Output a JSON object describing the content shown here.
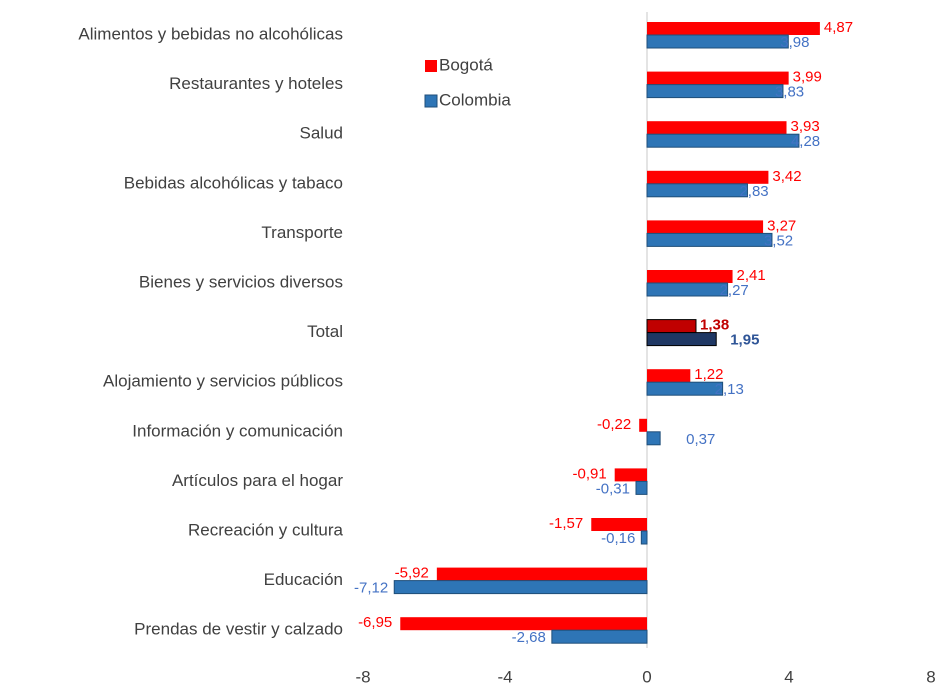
{
  "chart_data": {
    "type": "hbar-grouped",
    "categories": [
      "Alimentos y bebidas no alcohólicas",
      "Restaurantes y hoteles",
      "Salud",
      "Bebidas alcohólicas y tabaco",
      "Transporte",
      "Bienes y servicios diversos",
      "Total",
      "Alojamiento y servicios públicos",
      "Información y comunicación",
      "Artículos para el hogar ",
      "Recreación y cultura",
      "Educación",
      "Prendas de vestir y calzado"
    ],
    "series": [
      {
        "name": "Bogotá",
        "color": "#ff0000",
        "label_color": "#ff0000",
        "highlight_color": "#c00000",
        "highlight_label_color": "#c00000",
        "values": [
          4.87,
          3.99,
          3.93,
          3.42,
          3.27,
          2.41,
          1.38,
          1.22,
          -0.22,
          -0.91,
          -1.57,
          -5.92,
          -6.95
        ],
        "value_labels": [
          "4,87",
          "3,99",
          "3,93",
          "3,42",
          "3,27",
          "2,41",
          "1,38",
          "1,22",
          "-0,22",
          "-0,91",
          "-1,57",
          "-5,92",
          "-6,95"
        ]
      },
      {
        "name": "Colombia",
        "color": "#2e75b6",
        "label_color": "#4472c4",
        "highlight_color": "#1f3864",
        "highlight_label_color": "#2f5597",
        "values": [
          3.98,
          3.83,
          4.28,
          2.83,
          3.52,
          2.27,
          1.95,
          2.13,
          0.37,
          -0.31,
          -0.16,
          -7.12,
          -2.68
        ],
        "value_labels": [
          "3,98",
          "3,83",
          "4,28",
          "2,83",
          "3,52",
          "2,27",
          "1,95",
          "2,13",
          "0,37",
          "-0,31",
          "-0,16",
          "-7,12",
          "-2,68"
        ]
      }
    ],
    "highlight_index": 6,
    "xlim": [
      -8,
      8
    ],
    "xticks": [
      -8,
      -4,
      0,
      4,
      8
    ],
    "legend": "top-left",
    "grid": false
  }
}
